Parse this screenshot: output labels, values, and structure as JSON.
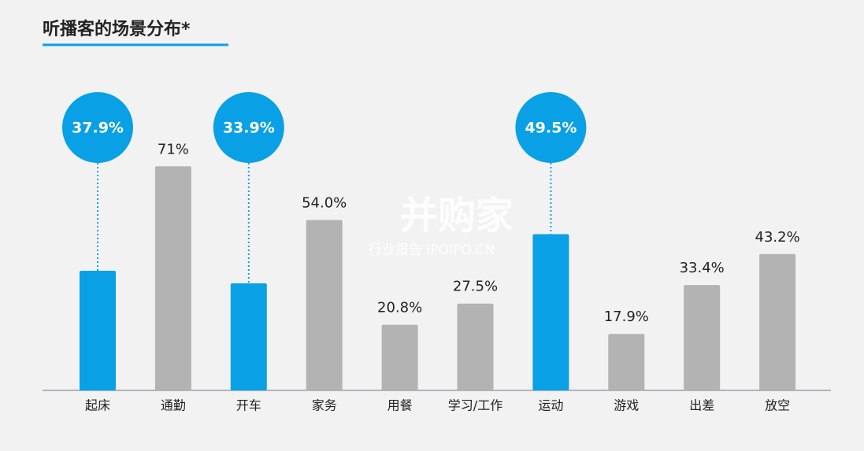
{
  "chart_data": {
    "type": "bar",
    "title": "听播客的场景分布*",
    "categories": [
      "起床",
      "通勤",
      "开车",
      "家务",
      "用餐",
      "学习/工作",
      "运动",
      "游戏",
      "出差",
      "放空"
    ],
    "values": [
      37.9,
      71,
      33.9,
      54.0,
      20.8,
      27.5,
      49.5,
      17.9,
      33.4,
      43.2
    ],
    "value_labels": [
      "37.9%",
      "71%",
      "33.9%",
      "54.0%",
      "20.8%",
      "27.5%",
      "49.5%",
      "17.9%",
      "33.4%",
      "43.2%"
    ],
    "highlight": [
      true,
      false,
      true,
      false,
      false,
      false,
      true,
      false,
      false,
      false
    ],
    "color": "#b3b3b3",
    "highlight_color": "#0aa0e6",
    "watermark": [
      "并购家",
      "行业报告 IPOIPO.CN"
    ]
  }
}
